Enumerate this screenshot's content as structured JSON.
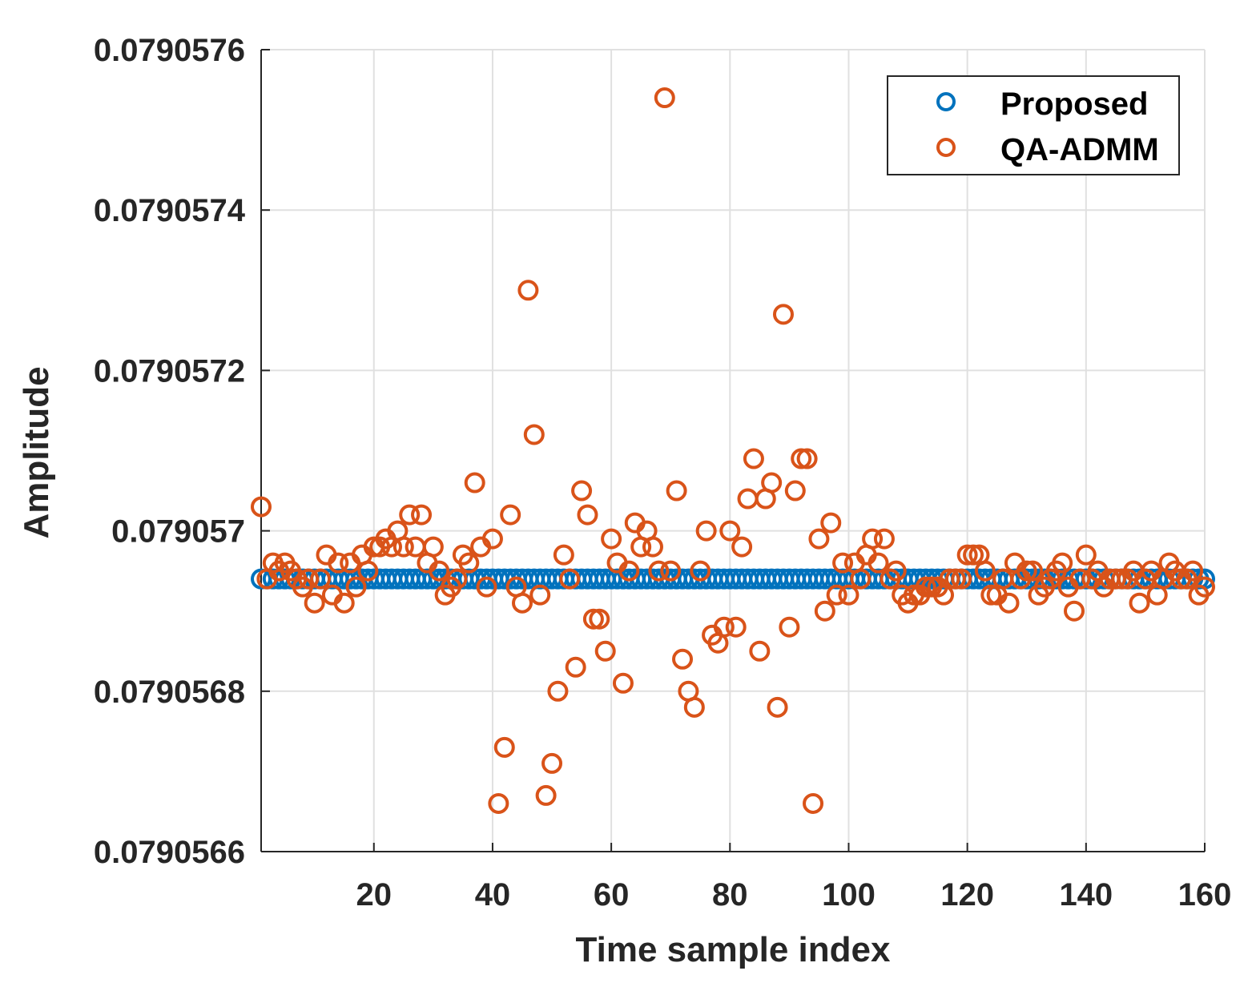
{
  "chart_data": {
    "type": "scatter",
    "title": "",
    "xlabel": "Time sample index",
    "ylabel": "Amplitude",
    "xlim": [
      1,
      160
    ],
    "ylim": [
      0.0790566,
      0.0790576
    ],
    "xticks": [
      20,
      40,
      60,
      80,
      100,
      120,
      140,
      160
    ],
    "yticks": [
      0.0790566,
      0.0790568,
      0.079057,
      0.0790572,
      0.0790574,
      0.0790576
    ],
    "ytick_labels": [
      "0.0790566",
      "0.0790568",
      "0.079057",
      "0.0790572",
      "0.0790574",
      "0.0790576"
    ],
    "grid": true,
    "legend_location": "top-right",
    "series": [
      {
        "name": "Proposed",
        "color": "#0072BD",
        "marker": "open-circle",
        "x_start": 1,
        "x_end": 160,
        "constant_value": 0.07905694
      },
      {
        "name": "QA-ADMM",
        "color": "#D95319",
        "marker": "open-circle",
        "x": [
          1,
          2,
          3,
          4,
          5,
          6,
          7,
          8,
          9,
          10,
          11,
          12,
          13,
          14,
          15,
          16,
          17,
          18,
          19,
          20,
          21,
          22,
          23,
          24,
          25,
          26,
          27,
          28,
          29,
          30,
          31,
          32,
          33,
          34,
          35,
          36,
          37,
          38,
          39,
          40,
          41,
          42,
          43,
          44,
          45,
          46,
          47,
          48,
          49,
          50,
          51,
          52,
          53,
          54,
          55,
          56,
          57,
          58,
          59,
          60,
          61,
          62,
          63,
          64,
          65,
          66,
          67,
          68,
          69,
          70,
          71,
          72,
          73,
          74,
          75,
          76,
          77,
          78,
          79,
          80,
          81,
          82,
          83,
          84,
          85,
          86,
          87,
          88,
          89,
          90,
          91,
          92,
          93,
          94,
          95,
          96,
          97,
          98,
          99,
          100,
          101,
          102,
          103,
          104,
          105,
          106,
          107,
          108,
          109,
          110,
          111,
          112,
          113,
          114,
          115,
          116,
          117,
          118,
          119,
          120,
          121,
          122,
          123,
          124,
          125,
          126,
          127,
          128,
          129,
          130,
          131,
          132,
          133,
          134,
          135,
          136,
          137,
          138,
          139,
          140,
          141,
          142,
          143,
          144,
          145,
          146,
          147,
          148,
          149,
          150,
          151,
          152,
          153,
          154,
          155,
          156,
          157,
          158,
          159,
          160
        ],
        "values": [
          0.07905703,
          0.07905694,
          0.07905696,
          0.07905695,
          0.07905696,
          0.07905695,
          0.07905694,
          0.07905693,
          0.07905694,
          0.07905691,
          0.07905694,
          0.07905697,
          0.07905692,
          0.07905696,
          0.07905691,
          0.07905696,
          0.07905693,
          0.07905697,
          0.07905695,
          0.07905698,
          0.07905698,
          0.07905699,
          0.07905698,
          0.079057,
          0.07905698,
          0.07905702,
          0.07905698,
          0.07905702,
          0.07905696,
          0.07905698,
          0.07905695,
          0.07905692,
          0.07905693,
          0.07905694,
          0.07905697,
          0.07905696,
          0.07905706,
          0.07905698,
          0.07905693,
          0.07905699,
          0.07905666,
          0.07905673,
          0.07905702,
          0.07905693,
          0.07905691,
          0.0790573,
          0.07905712,
          0.07905692,
          0.07905667,
          0.07905671,
          0.0790568,
          0.07905697,
          0.07905694,
          0.07905683,
          0.07905705,
          0.07905702,
          0.07905689,
          0.07905689,
          0.07905685,
          0.07905699,
          0.07905696,
          0.07905681,
          0.07905695,
          0.07905701,
          0.07905698,
          0.079057,
          0.07905698,
          0.07905695,
          0.07905754,
          0.07905695,
          0.07905705,
          0.07905684,
          0.0790568,
          0.07905678,
          0.07905695,
          0.079057,
          0.07905687,
          0.07905686,
          0.07905688,
          0.079057,
          0.07905688,
          0.07905698,
          0.07905704,
          0.07905709,
          0.07905685,
          0.07905704,
          0.07905706,
          0.07905678,
          0.07905727,
          0.07905688,
          0.07905705,
          0.07905709,
          0.07905709,
          0.07905666,
          0.07905699,
          0.0790569,
          0.07905701,
          0.07905692,
          0.07905696,
          0.07905692,
          0.07905696,
          0.07905694,
          0.07905697,
          0.07905699,
          0.07905696,
          0.07905699,
          0.07905694,
          0.07905695,
          0.07905692,
          0.07905691,
          0.07905692,
          0.07905692,
          0.07905693,
          0.07905693,
          0.07905693,
          0.07905692,
          0.07905694,
          0.07905694,
          0.07905694,
          0.07905697,
          0.07905697,
          0.07905697,
          0.07905695,
          0.07905692,
          0.07905692,
          0.07905694,
          0.07905691,
          0.07905696,
          0.07905694,
          0.07905695,
          0.07905695,
          0.07905692,
          0.07905693,
          0.07905694,
          0.07905695,
          0.07905696,
          0.07905693,
          0.0790569,
          0.07905694,
          0.07905697,
          0.07905694,
          0.07905695,
          0.07905693,
          0.07905694,
          0.07905694,
          0.07905694,
          0.07905694,
          0.07905695,
          0.07905691,
          0.07905694,
          0.07905695,
          0.07905692,
          0.07905694,
          0.07905696,
          0.07905695,
          0.07905694,
          0.07905694,
          0.07905695,
          0.07905692,
          0.07905693
        ]
      }
    ]
  }
}
